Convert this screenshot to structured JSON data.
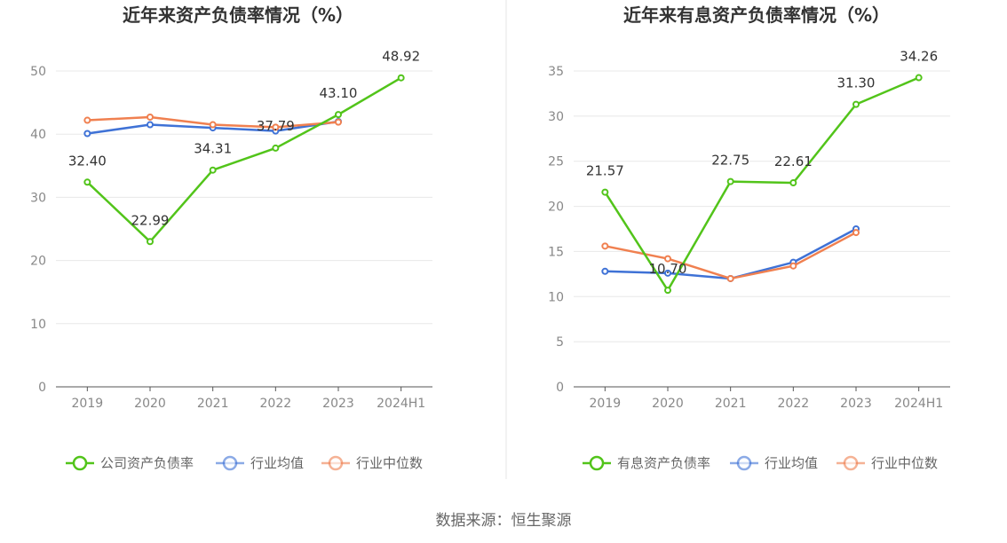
{
  "chart_data": [
    {
      "type": "line",
      "title": "近年来资产负债率情况（%）",
      "categories": [
        "2019",
        "2020",
        "2021",
        "2022",
        "2023",
        "2024H1"
      ],
      "ylim": [
        0,
        50
      ],
      "yticks": [
        0,
        10,
        20,
        30,
        40,
        50
      ],
      "grid": true,
      "legend_position": "bottom",
      "series": [
        {
          "name": "公司资产负债率",
          "color": "#52c41a",
          "values": [
            32.4,
            22.99,
            34.31,
            37.79,
            43.1,
            48.92
          ],
          "labels": [
            "32.40",
            "22.99",
            "34.31",
            "37.79",
            "43.10",
            "48.92"
          ]
        },
        {
          "name": "行业均值",
          "color": "#3f72d6",
          "values": [
            40.1,
            41.5,
            41.0,
            40.5,
            42.0,
            null
          ]
        },
        {
          "name": "行业中位数",
          "color": "#f08050",
          "values": [
            42.2,
            42.7,
            41.5,
            41.1,
            41.9,
            null
          ]
        }
      ]
    },
    {
      "type": "line",
      "title": "近年来有息资产负债率情况（%）",
      "categories": [
        "2019",
        "2020",
        "2021",
        "2022",
        "2023",
        "2024H1"
      ],
      "ylim": [
        0,
        35
      ],
      "yticks": [
        0,
        5,
        10,
        15,
        20,
        25,
        30,
        35
      ],
      "grid": true,
      "legend_position": "bottom",
      "series": [
        {
          "name": "有息资产负债率",
          "color": "#52c41a",
          "values": [
            21.57,
            10.7,
            22.75,
            22.61,
            31.3,
            34.26
          ],
          "labels": [
            "21.57",
            "10.70",
            "22.75",
            "22.61",
            "31.30",
            "34.26"
          ]
        },
        {
          "name": "行业均值",
          "color": "#3f72d6",
          "values": [
            12.8,
            12.6,
            12.0,
            13.8,
            17.5,
            null
          ]
        },
        {
          "name": "行业中位数",
          "color": "#f08050",
          "values": [
            15.6,
            14.2,
            12.0,
            13.4,
            17.1,
            null
          ]
        }
      ]
    }
  ],
  "source_text": "数据来源：恒生聚源"
}
